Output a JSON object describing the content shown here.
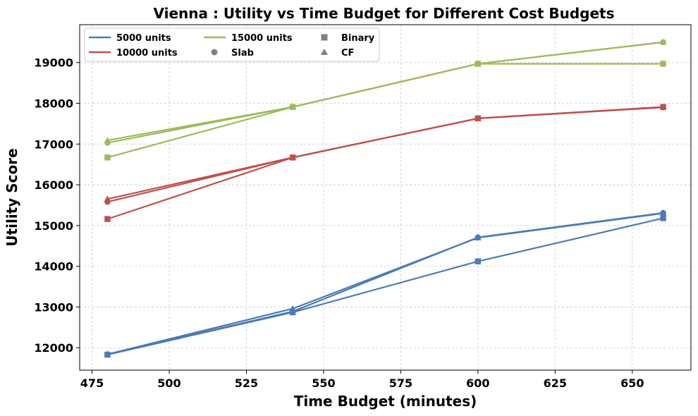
{
  "chart_data": {
    "type": "line",
    "title": "Vienna : Utility vs Time Budget for Different Cost Budgets",
    "xlabel": "Time Budget (minutes)",
    "ylabel": "Utility Score",
    "xlim": [
      471,
      669
    ],
    "ylim": [
      11450,
      19930
    ],
    "xticks": [
      475,
      500,
      525,
      550,
      575,
      600,
      625,
      650
    ],
    "yticks": [
      12000,
      13000,
      14000,
      15000,
      16000,
      17000,
      18000,
      19000
    ],
    "grid": true,
    "legend_position": "top-left",
    "colors": {
      "5000 units": "#4c7bb5",
      "10000 units": "#bf504d",
      "15000 units": "#9bbb59",
      "marker_legend": "#808080"
    },
    "legend": {
      "entries": [
        {
          "label": "5000 units",
          "kind": "line",
          "color": "#4c7bb5"
        },
        {
          "label": "10000 units",
          "kind": "line",
          "color": "#bf504d"
        },
        {
          "label": "15000 units",
          "kind": "line",
          "color": "#9bbb59"
        },
        {
          "label": "Slab",
          "kind": "marker",
          "marker": "circle"
        },
        {
          "label": "Binary",
          "kind": "marker",
          "marker": "square"
        },
        {
          "label": "CF",
          "kind": "marker",
          "marker": "triangle"
        }
      ]
    },
    "series": [
      {
        "cost": "5000 units",
        "method": "Slab",
        "marker": "circle",
        "x": [
          480,
          540,
          600,
          660
        ],
        "values": [
          11840,
          12890,
          14710,
          15310
        ]
      },
      {
        "cost": "5000 units",
        "method": "Binary",
        "marker": "square",
        "x": [
          480,
          540,
          600,
          660
        ],
        "values": [
          11830,
          12870,
          14120,
          15180
        ]
      },
      {
        "cost": "5000 units",
        "method": "CF",
        "marker": "triangle",
        "x": [
          480,
          540,
          600,
          660
        ],
        "values": [
          11840,
          12960,
          14700,
          15300
        ]
      },
      {
        "cost": "10000 units",
        "method": "Slab",
        "marker": "circle",
        "x": [
          480,
          540,
          600,
          660
        ],
        "values": [
          15580,
          16670,
          17630,
          17900
        ]
      },
      {
        "cost": "10000 units",
        "method": "Binary",
        "marker": "square",
        "x": [
          480,
          540,
          600,
          660
        ],
        "values": [
          15160,
          16670,
          17630,
          17910
        ]
      },
      {
        "cost": "10000 units",
        "method": "CF",
        "marker": "triangle",
        "x": [
          480,
          540,
          600,
          660
        ],
        "values": [
          15650,
          16670,
          17630,
          17910
        ]
      },
      {
        "cost": "15000 units",
        "method": "Slab",
        "marker": "circle",
        "x": [
          480,
          540,
          600,
          660
        ],
        "values": [
          17030,
          17910,
          18970,
          19500
        ]
      },
      {
        "cost": "15000 units",
        "method": "Binary",
        "marker": "square",
        "x": [
          480,
          540,
          600,
          660
        ],
        "values": [
          16670,
          17910,
          18970,
          18970
        ]
      },
      {
        "cost": "15000 units",
        "method": "CF",
        "marker": "triangle",
        "x": [
          480,
          540,
          600,
          660
        ],
        "values": [
          17090,
          17910,
          18970,
          19500
        ]
      }
    ]
  }
}
